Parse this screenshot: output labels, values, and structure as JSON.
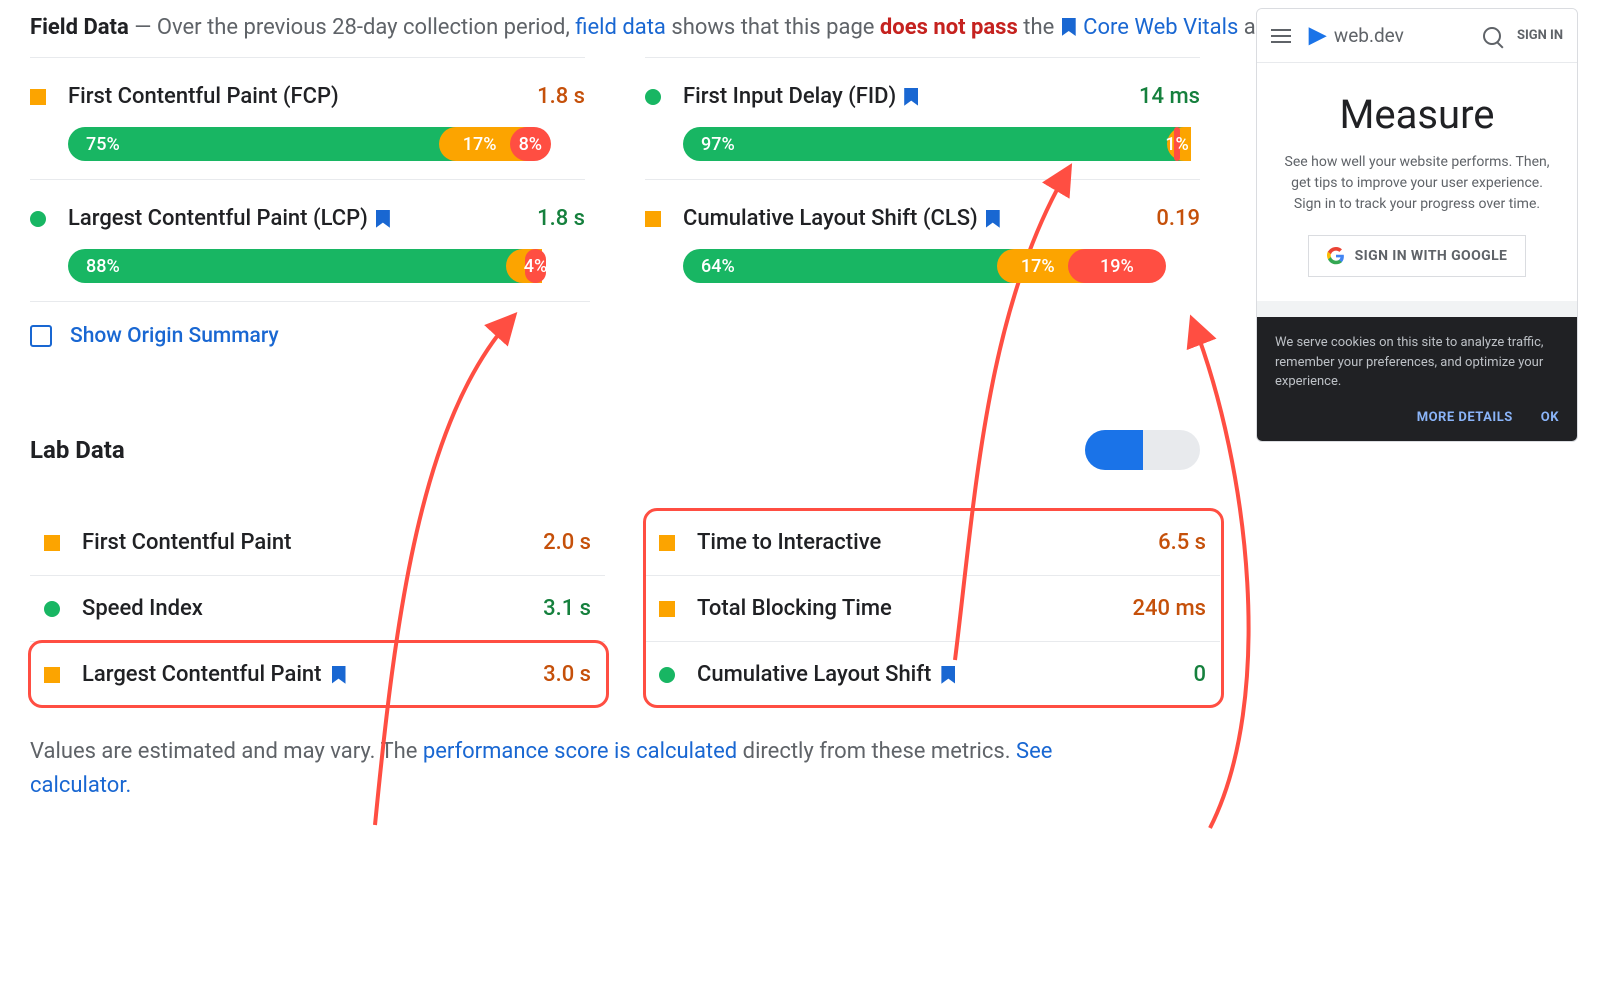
{
  "colors": {
    "green": "#18b663",
    "orange": "#fca400",
    "red": "#ff4e42",
    "blue": "#1967d2",
    "val_green": "#15803d",
    "val_orange": "#c5500a",
    "text": "#202124",
    "muted": "#5f6368"
  },
  "intro": {
    "title": "Field Data",
    "dash": " — ",
    "pre": "Over the previous 28-day collection period, ",
    "link1": "field data",
    "mid1": " shows that this page ",
    "fail": "does not pass",
    "post": " the ",
    "link2": "Core Web Vitals",
    "tail": " assessment."
  },
  "field": [
    {
      "name": "First Contentful Paint (FCP)",
      "indicator": "sq",
      "icolor": "#fca400",
      "value": "1.8 s",
      "vcolor": "#c5500a",
      "bookmark": false,
      "segments": [
        {
          "p": 75,
          "c": "g",
          "t": "75%"
        },
        {
          "p": 17,
          "c": "o",
          "t": "17%"
        },
        {
          "p": 8,
          "c": "r",
          "t": "8%"
        }
      ]
    },
    {
      "name": "First Input Delay (FID)",
      "indicator": "ci",
      "icolor": "#18b663",
      "value": "14 ms",
      "vcolor": "#15803d",
      "bookmark": true,
      "segments": [
        {
          "p": 97,
          "c": "g",
          "t": "97%"
        },
        {
          "p": 2,
          "c": "o",
          "t": "2%"
        },
        {
          "p": 1,
          "c": "r",
          "t": "1%"
        }
      ]
    },
    {
      "name": "Largest Contentful Paint (LCP)",
      "indicator": "ci",
      "icolor": "#18b663",
      "value": "1.8 s",
      "vcolor": "#15803d",
      "bookmark": true,
      "segments": [
        {
          "p": 88,
          "c": "g",
          "t": "88%"
        },
        {
          "p": 7,
          "c": "o",
          "t": "7%"
        },
        {
          "p": 4,
          "c": "r",
          "t": "4%"
        }
      ]
    },
    {
      "name": "Cumulative Layout Shift (CLS)",
      "indicator": "sq",
      "icolor": "#fca400",
      "value": "0.19",
      "vcolor": "#c5500a",
      "bookmark": true,
      "segments": [
        {
          "p": 64,
          "c": "g",
          "t": "64%"
        },
        {
          "p": 17,
          "c": "o",
          "t": "17%"
        },
        {
          "p": 19,
          "c": "r",
          "t": "19%"
        }
      ]
    }
  ],
  "origin_label": "Show Origin Summary",
  "lab_title": "Lab Data",
  "lab": [
    {
      "name": "First Contentful Paint",
      "indicator": "sq",
      "icolor": "#fca400",
      "value": "2.0 s",
      "vcolor": "#c5500a",
      "bookmark": false
    },
    {
      "name": "Time to Interactive",
      "indicator": "sq",
      "icolor": "#fca400",
      "value": "6.5 s",
      "vcolor": "#c5500a",
      "bookmark": false
    },
    {
      "name": "Speed Index",
      "indicator": "ci",
      "icolor": "#18b663",
      "value": "3.1 s",
      "vcolor": "#15803d",
      "bookmark": false
    },
    {
      "name": "Total Blocking Time",
      "indicator": "sq",
      "icolor": "#fca400",
      "value": "240 ms",
      "vcolor": "#c5500a",
      "bookmark": false
    },
    {
      "name": "Largest Contentful Paint",
      "indicator": "sq",
      "icolor": "#fca400",
      "value": "3.0 s",
      "vcolor": "#c5500a",
      "bookmark": true
    },
    {
      "name": "Cumulative Layout Shift",
      "indicator": "ci",
      "icolor": "#18b663",
      "value": "0",
      "vcolor": "#15803d",
      "bookmark": true
    }
  ],
  "highlights": [
    {
      "grid_col": 1,
      "row": 3
    },
    {
      "grid_col": 2,
      "row": 1,
      "span": 3
    }
  ],
  "footer": {
    "pre": "Values are estimated and may vary. The ",
    "link1": "performance score is calculated",
    "mid": " directly from these metrics. ",
    "link2": "See calculator."
  },
  "phone": {
    "brand": "web.dev",
    "signin": "SIGN IN",
    "h1": "Measure",
    "desc": "See how well your website performs. Then, get tips to improve your user experience. Sign in to track your progress over time.",
    "btn": "SIGN IN WITH GOOGLE",
    "cookie": "We serve cookies on this site to analyze traffic, remember your preferences, and optimize your experience.",
    "more": "MORE DETAILS",
    "ok": "OK"
  },
  "arrows": {
    "color": "#ff4e42",
    "stroke": 4,
    "paths": [
      "M 375 825 C 395 620, 420 420, 512 318",
      "M 955 660 C 975 500, 985 310, 1068 170",
      "M 1210 828 C 1275 700, 1250 470, 1193 322"
    ]
  }
}
